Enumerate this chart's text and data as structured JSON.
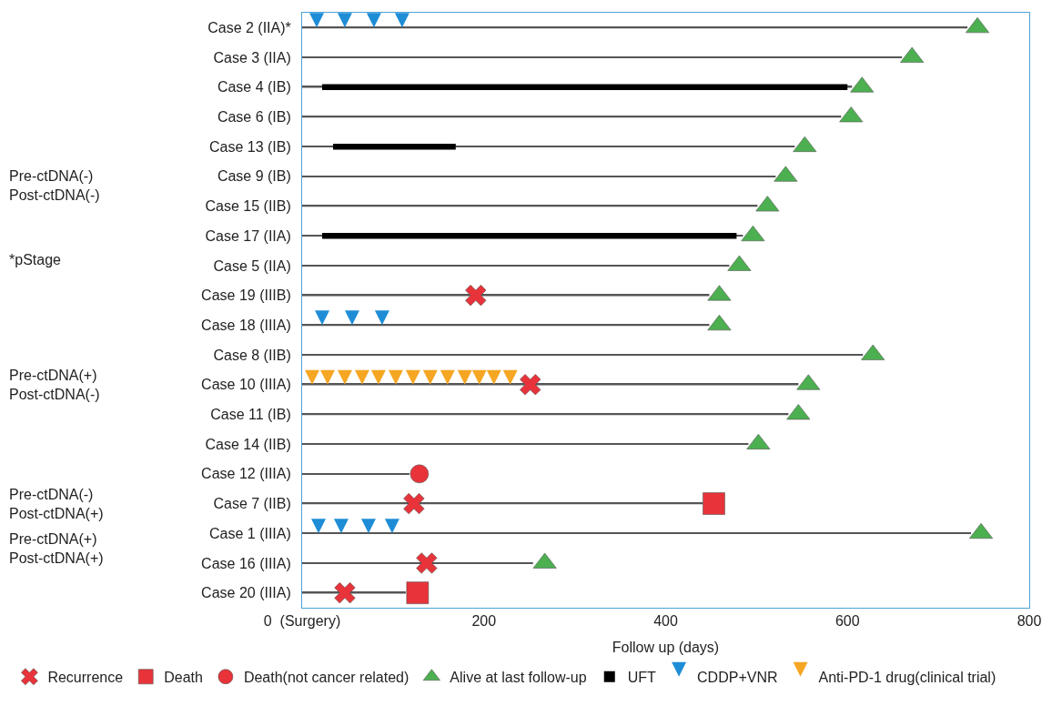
{
  "chart_data": {
    "type": "bar",
    "orientation": "horizontal",
    "xlabel": "Follow up (days)",
    "xlim": [
      0,
      800
    ],
    "xticks": [
      {
        "value": 0,
        "label": "0  (Surgery)"
      },
      200,
      400,
      600,
      800
    ],
    "legend": "bottom",
    "categories": [
      "Case 2 (IIA)*",
      "Case 3 (IIA)",
      "Case 4 (IB)",
      "Case 6 (IB)",
      "Case 13 (IB)",
      "Case 9 (IB)",
      "Case 15 (IIB)",
      "Case 17 (IIA)",
      "Case 5 (IIA)",
      "Case 19 (IIIB)",
      "Case 18 (IIIA)",
      "Case 8 (IIB)",
      "Case 10 (IIIA)",
      "Case 11 (IB)",
      "Case 14 (IIB)",
      "Case 12 (IIIA)",
      "Case 7 (IIB)",
      "Case 1 (IIIA)",
      "Case 16 (IIIA)",
      "Case 20 (IIIA)"
    ],
    "annotations": [
      "Pre-ctDNA(-)\nPost-ctDNA(-)",
      "*pStage",
      "Pre-ctDNA(+)\nPost-ctDNA(-)",
      "Pre-ctDNA(-)\nPost-ctDNA(+)",
      "Pre-ctDNA(+)\nPost-ctDNA(+)"
    ],
    "series": [
      {
        "color": "#555555",
        "values": [
          732,
          660,
          605,
          593,
          542,
          521,
          501,
          485,
          470,
          448,
          448,
          617,
          546,
          535,
          491,
          118,
          441,
          736,
          254,
          114
        ]
      },
      {
        "type": "scatter",
        "name": "Recurrence",
        "color": "#e8333a",
        "marker": "cross",
        "values": [
          null,
          null,
          null,
          null,
          null,
          null,
          null,
          null,
          null,
          191,
          null,
          null,
          251,
          null,
          null,
          null,
          123,
          null,
          137,
          47
        ]
      },
      {
        "type": "scatter",
        "name": "Death",
        "color": "#e8333a",
        "marker": "square",
        "values": [
          null,
          null,
          null,
          null,
          null,
          null,
          null,
          null,
          null,
          null,
          null,
          null,
          null,
          null,
          null,
          null,
          453,
          null,
          null,
          127
        ]
      },
      {
        "type": "scatter",
        "name": "Death(not cancer related)",
        "color": "#e8333a",
        "marker": "circle",
        "values": [
          null,
          null,
          null,
          null,
          null,
          null,
          null,
          null,
          null,
          null,
          null,
          null,
          null,
          null,
          null,
          129,
          null,
          null,
          null,
          null
        ]
      },
      {
        "type": "scatter",
        "name": "Alive at last follow-up",
        "color": "#4caf50",
        "marker": "triangle",
        "values": [
          743,
          671,
          616,
          604,
          553,
          532,
          512,
          496,
          481,
          459,
          459,
          628,
          557,
          546,
          502,
          null,
          null,
          747,
          267,
          null
        ]
      },
      {
        "type": "bar",
        "name": "UFT",
        "color": "#000000",
        "base": [
          null,
          null,
          22,
          null,
          34,
          null,
          null,
          22,
          null,
          null,
          null,
          null,
          null,
          null,
          null,
          null,
          null,
          null,
          null,
          null
        ],
        "values": [
          null,
          null,
          578,
          null,
          135,
          null,
          null,
          456,
          null,
          null,
          null,
          null,
          null,
          null,
          null,
          null,
          null,
          null,
          null,
          null
        ]
      },
      {
        "type": "scatter",
        "name": "CDDP+VNR",
        "color": "#1f8dd6",
        "values": [
          16,
          null,
          null,
          null,
          null,
          null,
          null,
          null,
          null,
          null,
          22,
          null,
          null,
          null,
          null,
          null,
          null,
          18,
          null,
          null
        ]
      },
      {
        "type": "scatter",
        "color": "#1f8dd6",
        "values": [
          47,
          null,
          null,
          null,
          null,
          null,
          null,
          null,
          null,
          null,
          55,
          null,
          null,
          null,
          null,
          null,
          null,
          43,
          null,
          null
        ]
      },
      {
        "type": "scatter",
        "color": "#1f8dd6",
        "values": [
          79,
          null,
          null,
          null,
          null,
          null,
          null,
          null,
          null,
          null,
          88,
          null,
          null,
          null,
          null,
          null,
          null,
          73,
          null,
          null
        ]
      },
      {
        "type": "scatter",
        "color": "#1f8dd6",
        "values": [
          110,
          null,
          null,
          null,
          null,
          null,
          null,
          null,
          null,
          null,
          null,
          null,
          null,
          null,
          null,
          null,
          null,
          99,
          null,
          null
        ]
      },
      {
        "type": "scatter",
        "name": "Anti-PD-1 drug(clinical trial)",
        "color": "#f5a623",
        "values": [
          null,
          null,
          null,
          null,
          null,
          null,
          null,
          null,
          null,
          null,
          null,
          null,
          11,
          null,
          null,
          null,
          null,
          null,
          null,
          null
        ]
      },
      {
        "type": "scatter",
        "color": "#f5a623",
        "values": [
          null,
          null,
          null,
          null,
          null,
          null,
          null,
          null,
          null,
          null,
          null,
          null,
          28,
          null,
          null,
          null,
          null,
          null,
          null,
          null
        ]
      },
      {
        "type": "scatter",
        "color": "#f5a623",
        "values": [
          null,
          null,
          null,
          null,
          null,
          null,
          null,
          null,
          null,
          null,
          null,
          null,
          47,
          null,
          null,
          null,
          null,
          null,
          null,
          null
        ]
      },
      {
        "type": "scatter",
        "color": "#f5a623",
        "values": [
          null,
          null,
          null,
          null,
          null,
          null,
          null,
          null,
          null,
          null,
          null,
          null,
          66,
          null,
          null,
          null,
          null,
          null,
          null,
          null
        ]
      },
      {
        "type": "scatter",
        "color": "#f5a623",
        "values": [
          null,
          null,
          null,
          null,
          null,
          null,
          null,
          null,
          null,
          null,
          null,
          null,
          84,
          null,
          null,
          null,
          null,
          null,
          null,
          null
        ]
      },
      {
        "type": "scatter",
        "color": "#f5a623",
        "values": [
          null,
          null,
          null,
          null,
          null,
          null,
          null,
          null,
          null,
          null,
          null,
          null,
          103,
          null,
          null,
          null,
          null,
          null,
          null,
          null
        ]
      },
      {
        "type": "scatter",
        "color": "#f5a623",
        "values": [
          null,
          null,
          null,
          null,
          null,
          null,
          null,
          null,
          null,
          null,
          null,
          null,
          122,
          null,
          null,
          null,
          null,
          null,
          null,
          null
        ]
      },
      {
        "type": "scatter",
        "color": "#f5a623",
        "values": [
          null,
          null,
          null,
          null,
          null,
          null,
          null,
          null,
          null,
          null,
          null,
          null,
          141,
          null,
          null,
          null,
          null,
          null,
          null,
          null
        ]
      },
      {
        "type": "scatter",
        "color": "#f5a623",
        "values": [
          null,
          null,
          null,
          null,
          null,
          null,
          null,
          null,
          null,
          null,
          null,
          null,
          160,
          null,
          null,
          null,
          null,
          null,
          null,
          null
        ]
      },
      {
        "type": "scatter",
        "color": "#f5a623",
        "values": [
          null,
          null,
          null,
          null,
          null,
          null,
          null,
          null,
          null,
          null,
          null,
          null,
          179,
          null,
          null,
          null,
          null,
          null,
          null,
          null
        ]
      },
      {
        "type": "scatter",
        "color": "#f5a623",
        "values": [
          null,
          null,
          null,
          null,
          null,
          null,
          null,
          null,
          null,
          null,
          null,
          null,
          195,
          null,
          null,
          null,
          null,
          null,
          null,
          null
        ]
      },
      {
        "type": "scatter",
        "color": "#f5a623",
        "values": [
          null,
          null,
          null,
          null,
          null,
          null,
          null,
          null,
          null,
          null,
          null,
          null,
          211,
          null,
          null,
          null,
          null,
          null,
          null,
          null
        ]
      },
      {
        "type": "scatter",
        "color": "#f5a623",
        "values": [
          null,
          null,
          null,
          null,
          null,
          null,
          null,
          null,
          null,
          null,
          null,
          null,
          229,
          null,
          null,
          null,
          null,
          null,
          null,
          null
        ]
      }
    ]
  }
}
